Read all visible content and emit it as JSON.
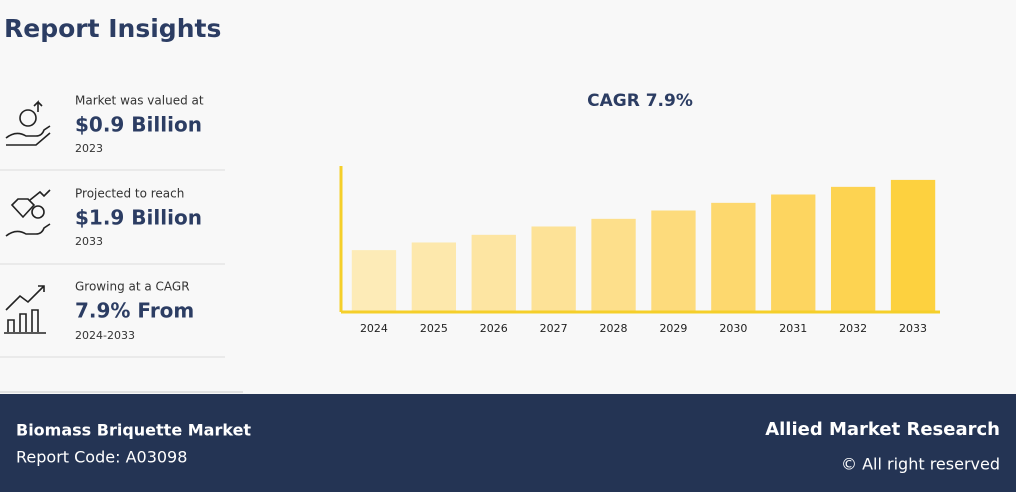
{
  "header": {
    "title": "Report Insights"
  },
  "insights": [
    {
      "label": "Market was valued at",
      "value": "$0.9 Billion",
      "note": "2023"
    },
    {
      "label": "Projected to reach",
      "value": "$1.9 Billion",
      "note": "2033"
    },
    {
      "label": "Growing at a CAGR",
      "value": "7.9% From",
      "note": "2024-2033"
    }
  ],
  "chart_data": {
    "type": "bar",
    "title": "CAGR 7.9%",
    "categories": [
      "2024",
      "2025",
      "2026",
      "2027",
      "2028",
      "2029",
      "2030",
      "2031",
      "2032",
      "2033"
    ],
    "values": [
      0.89,
      1.0,
      1.11,
      1.23,
      1.34,
      1.46,
      1.57,
      1.69,
      1.8,
      1.9
    ],
    "colors": [
      "#fdebb7",
      "#fde8ac",
      "#fde5a2",
      "#fde297",
      "#fddf8b",
      "#fddb7c",
      "#fdd86e",
      "#fdd560",
      "#fdd351",
      "#fdd13f"
    ],
    "axis_color": "#f5cf2a",
    "ylim": [
      0,
      2.1
    ]
  },
  "footer": {
    "market": "Biomass Briquette Market",
    "code": "Report Code: A03098",
    "brand": "Allied Market Research",
    "rights": "© All right reserved"
  }
}
